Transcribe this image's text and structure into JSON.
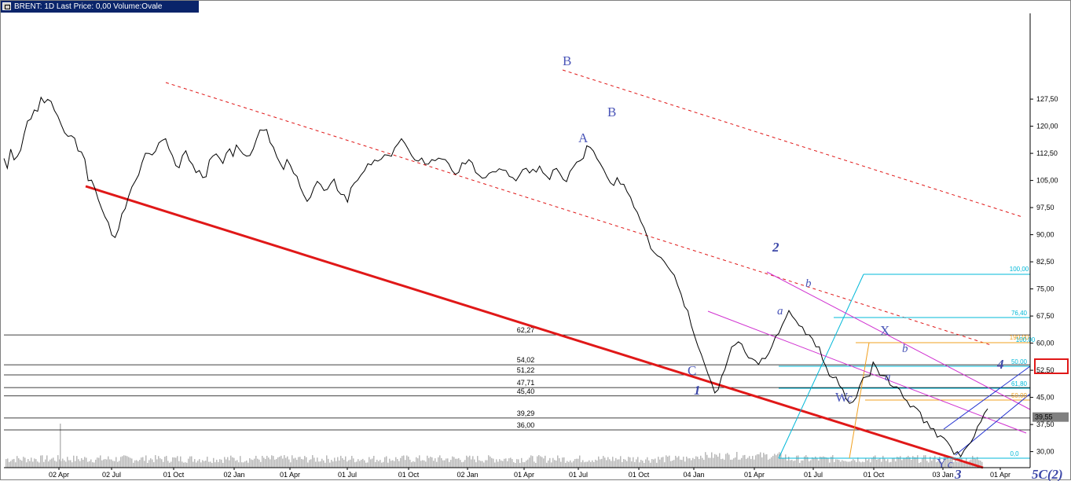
{
  "window": {
    "title": "BRENT: 1D Last Price: 0,00 Volume:Ovale"
  },
  "colors": {
    "price": "#000000",
    "support_line": "#e01818",
    "channel": "#e01818",
    "wave_label": "#4a55b8",
    "fib_cyan": "#00b8d8",
    "fib_orange": "#f0a020",
    "fib_magenta": "#d030d0",
    "fib_blue": "#2030d0",
    "volume": "#b8b8b8"
  },
  "chart_data": {
    "type": "line",
    "title": "",
    "ylim": [
      26,
      130
    ],
    "y_ticks": [
      "127,50",
      "120,00",
      "112,50",
      "105,00",
      "97,50",
      "90,00",
      "82,50",
      "75,00",
      "67,50",
      "60,00",
      "52,50",
      "45,00",
      "37,50",
      "30,00"
    ],
    "x_ticks": [
      "02 Apr",
      "02 Jul",
      "01 Oct",
      "02 Jan",
      "01 Apr",
      "01 Jul",
      "01 Oct",
      "02 Jan",
      "01 Apr",
      "01 Jul",
      "01 Oct",
      "04 Jan",
      "01 Apr",
      "01 Jul",
      "01 Oct",
      "03 Jan",
      "01 Apr"
    ],
    "last_price": "39,55",
    "series": [
      {
        "name": "",
        "values": [
          111,
          109,
          113,
          110,
          112,
          114,
          118,
          121,
          122,
          125,
          124,
          127,
          126,
          128,
          127,
          125,
          123,
          120,
          118,
          117,
          118,
          116,
          114,
          112,
          110,
          106,
          104,
          102,
          100,
          97,
          95,
          93,
          91,
          89,
          92,
          96,
          98,
          101,
          103,
          105,
          107,
          109,
          112,
          113,
          112,
          114,
          115,
          117,
          116,
          114,
          111,
          110,
          109,
          112,
          114,
          111,
          109,
          108,
          107,
          106,
          107,
          110,
          112,
          113,
          112,
          110,
          112,
          113,
          112,
          114,
          113,
          112,
          111,
          112,
          114,
          116,
          118,
          119,
          118,
          116,
          114,
          112,
          110,
          109,
          111,
          110,
          107,
          106,
          104,
          102,
          100,
          101,
          103,
          104,
          104,
          103,
          102,
          104,
          105,
          103,
          102,
          101,
          100,
          102,
          104,
          106,
          107,
          108,
          109,
          110,
          111,
          110,
          112,
          113,
          112,
          111,
          114,
          116,
          117,
          115,
          113,
          112,
          111,
          110,
          111,
          110,
          109,
          110,
          111,
          112,
          111,
          110,
          109,
          108,
          107,
          108,
          109,
          110,
          110,
          109,
          108,
          107,
          106,
          105,
          106,
          107,
          108,
          109,
          108,
          107,
          106,
          105,
          106,
          107,
          108,
          109,
          108,
          107,
          108,
          109,
          108,
          107,
          106,
          107,
          109,
          108,
          106,
          105,
          107,
          108,
          110,
          111,
          112,
          114,
          115,
          113,
          111,
          109,
          107,
          106,
          105,
          104,
          106,
          104,
          103,
          102,
          100,
          98,
          96,
          94,
          91,
          89,
          87,
          86,
          85,
          83,
          82,
          81,
          80,
          79,
          77,
          74,
          71,
          68,
          66,
          63,
          60,
          57,
          55,
          52,
          49,
          47,
          48,
          50,
          53,
          56,
          58,
          59,
          60,
          59,
          58,
          57,
          56,
          55,
          54,
          55,
          56,
          57,
          59,
          61,
          63,
          65,
          67,
          68,
          67,
          66,
          65,
          64,
          63,
          62,
          61,
          60,
          58,
          56,
          54,
          52,
          51,
          50,
          48,
          47,
          45,
          43,
          44,
          46,
          48,
          50,
          51,
          52,
          54,
          53,
          52,
          51,
          50,
          49,
          48,
          47,
          46,
          45,
          44,
          43,
          42,
          41,
          40,
          39,
          38,
          37,
          36,
          35,
          34,
          33,
          32,
          31,
          30,
          29,
          28,
          30,
          32,
          33,
          35,
          36,
          38,
          40,
          42
        ]
      }
    ],
    "levels": [
      "62,27",
      "54,02",
      "51,22",
      "47,71",
      "45,40",
      "39,29",
      "36,00"
    ],
    "fib_labels": [
      "100,00",
      "76,40",
      "190,00",
      "50,00",
      "0,0",
      "100,00",
      "61,80",
      "50,00"
    ],
    "wave_labels": {
      "B_top": "B",
      "A": "A",
      "B": "B",
      "C": "C",
      "one": "1",
      "two": "2",
      "a1": "a",
      "b1": "b",
      "X": "X",
      "b2": "b",
      "W": "W",
      "c1": "c",
      "a2": "a",
      "Y": "Y",
      "c2": "c",
      "three": "3",
      "four": "4",
      "five": "5C(2)"
    }
  }
}
